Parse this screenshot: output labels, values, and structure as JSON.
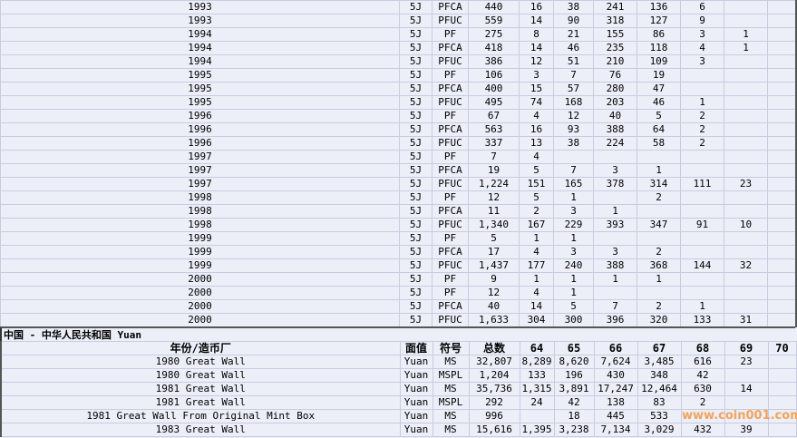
{
  "top_rows": [
    [
      "1993",
      "5J",
      "PFCA",
      "440",
      "16",
      "38",
      "241",
      "136",
      "6",
      "",
      ""
    ],
    [
      "1993",
      "5J",
      "PFUC",
      "559",
      "14",
      "90",
      "318",
      "127",
      "9",
      "",
      ""
    ],
    [
      "1994",
      "5J",
      "PF",
      "275",
      "8",
      "21",
      "155",
      "86",
      "3",
      "1",
      ""
    ],
    [
      "1994",
      "5J",
      "PFCA",
      "418",
      "14",
      "46",
      "235",
      "118",
      "4",
      "1",
      ""
    ],
    [
      "1994",
      "5J",
      "PFUC",
      "386",
      "12",
      "51",
      "210",
      "109",
      "3",
      "",
      ""
    ],
    [
      "1995",
      "5J",
      "PF",
      "106",
      "3",
      "7",
      "76",
      "19",
      "",
      "",
      ""
    ],
    [
      "1995",
      "5J",
      "PFCA",
      "400",
      "15",
      "57",
      "280",
      "47",
      "",
      "",
      ""
    ],
    [
      "1995",
      "5J",
      "PFUC",
      "495",
      "74",
      "168",
      "203",
      "46",
      "1",
      "",
      ""
    ],
    [
      "1996",
      "5J",
      "PF",
      "67",
      "4",
      "12",
      "40",
      "5",
      "2",
      "",
      ""
    ],
    [
      "1996",
      "5J",
      "PFCA",
      "563",
      "16",
      "93",
      "388",
      "64",
      "2",
      "",
      ""
    ],
    [
      "1996",
      "5J",
      "PFUC",
      "337",
      "13",
      "38",
      "224",
      "58",
      "2",
      "",
      ""
    ],
    [
      "1997",
      "5J",
      "PF",
      "7",
      "4",
      "",
      "",
      "",
      "",
      "",
      ""
    ],
    [
      "1997",
      "5J",
      "PFCA",
      "19",
      "5",
      "7",
      "3",
      "1",
      "",
      "",
      ""
    ],
    [
      "1997",
      "5J",
      "PFUC",
      "1,224",
      "151",
      "165",
      "378",
      "314",
      "111",
      "23",
      ""
    ],
    [
      "1998",
      "5J",
      "PF",
      "12",
      "5",
      "1",
      "",
      "2",
      "",
      "",
      ""
    ],
    [
      "1998",
      "5J",
      "PFCA",
      "11",
      "2",
      "3",
      "1",
      "",
      "",
      "",
      ""
    ],
    [
      "1998",
      "5J",
      "PFUC",
      "1,340",
      "167",
      "229",
      "393",
      "347",
      "91",
      "10",
      ""
    ],
    [
      "1999",
      "5J",
      "PF",
      "5",
      "1",
      "1",
      "",
      "",
      "",
      "",
      ""
    ],
    [
      "1999",
      "5J",
      "PFCA",
      "17",
      "4",
      "3",
      "3",
      "2",
      "",
      "",
      ""
    ],
    [
      "1999",
      "5J",
      "PFUC",
      "1,437",
      "177",
      "240",
      "388",
      "368",
      "144",
      "32",
      ""
    ],
    [
      "2000",
      "5J",
      "PF",
      "9",
      "1",
      "1",
      "1",
      "1",
      "",
      "",
      ""
    ],
    [
      "2000",
      "5J",
      "PF",
      "12",
      "4",
      "1",
      "",
      "",
      "",
      "",
      ""
    ],
    [
      "2000",
      "5J",
      "PFCA",
      "40",
      "14",
      "5",
      "7",
      "2",
      "1",
      "",
      ""
    ],
    [
      "2000",
      "5J",
      "PFUC",
      "1,633",
      "304",
      "300",
      "396",
      "320",
      "133",
      "31",
      ""
    ]
  ],
  "section_title": "中国 - 中华人民共和国 Yuan",
  "headers": [
    "年份/造币厂",
    "面值",
    "符号",
    "总数",
    "64",
    "65",
    "66",
    "67",
    "68",
    "69",
    "70"
  ],
  "bottom_rows": [
    [
      "1980 Great Wall",
      "Yuan",
      "MS",
      "32,807",
      "8,289",
      "8,620",
      "7,624",
      "3,485",
      "616",
      "23",
      ""
    ],
    [
      "1980 Great Wall",
      "Yuan",
      "MSPL",
      "1,204",
      "133",
      "196",
      "430",
      "348",
      "42",
      "",
      ""
    ],
    [
      "1981 Great Wall",
      "Yuan",
      "MS",
      "35,736",
      "1,315",
      "3,891",
      "17,247",
      "12,464",
      "630",
      "14",
      ""
    ],
    [
      "1981 Great Wall",
      "Yuan",
      "MSPL",
      "292",
      "24",
      "42",
      "138",
      "83",
      "2",
      "",
      ""
    ],
    [
      "1981 Great Wall From Original Mint Box",
      "Yuan",
      "MS",
      "996",
      "",
      "18",
      "445",
      "533",
      "",
      "",
      ""
    ],
    [
      "1983 Great Wall",
      "Yuan",
      "MS",
      "15,616",
      "1,395",
      "3,238",
      "7,134",
      "3,029",
      "432",
      "39",
      ""
    ]
  ],
  "watermark": "www.coin001.com"
}
